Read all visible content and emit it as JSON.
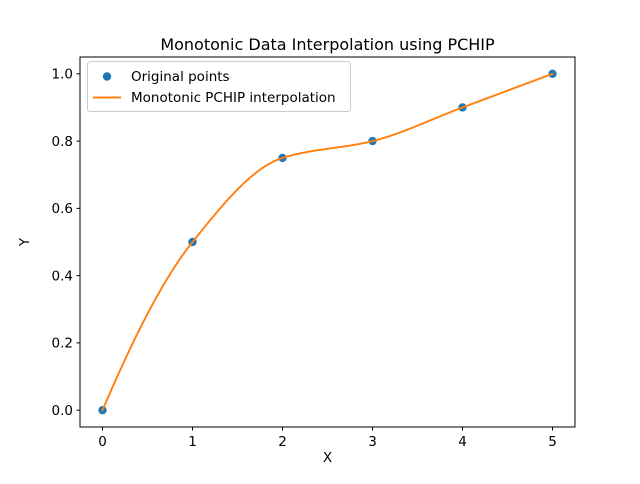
{
  "figure": {
    "background_color": "#ffffff",
    "text_color": "#000000",
    "frame_color": "#000000"
  },
  "legend": {
    "position": "upper left",
    "border_color": "#cccccc",
    "entries": [
      {
        "label": "Original points",
        "marker": "circle",
        "color": "#1f77b4"
      },
      {
        "label": "Monotonic PCHIP interpolation",
        "marker": "line",
        "color": "#ff7f0e"
      }
    ]
  },
  "chart_data": {
    "type": "line",
    "title": "Monotonic Data Interpolation using PCHIP",
    "xlabel": "X",
    "ylabel": "Y",
    "xlim": [
      -0.25,
      5.25
    ],
    "ylim": [
      -0.05,
      1.05
    ],
    "x_ticks": [
      0,
      1,
      2,
      3,
      4,
      5
    ],
    "y_ticks": [
      0.0,
      0.2,
      0.4,
      0.6,
      0.8,
      1.0
    ],
    "grid": false,
    "legend_position": "upper left",
    "series": [
      {
        "name": "Original points",
        "type": "scatter",
        "color": "#1f77b4",
        "marker_radius": 4.2,
        "x": [
          0,
          1,
          2,
          3,
          4,
          5
        ],
        "y": [
          0.0,
          0.5,
          0.75,
          0.8,
          0.9,
          1.0
        ]
      },
      {
        "name": "Monotonic PCHIP interpolation",
        "type": "pchip",
        "color": "#ff7f0e",
        "line_width": 1.9,
        "x": [
          0,
          1,
          2,
          3,
          4,
          5
        ],
        "y": [
          0.0,
          0.5,
          0.75,
          0.8,
          0.9,
          1.0
        ]
      }
    ]
  }
}
